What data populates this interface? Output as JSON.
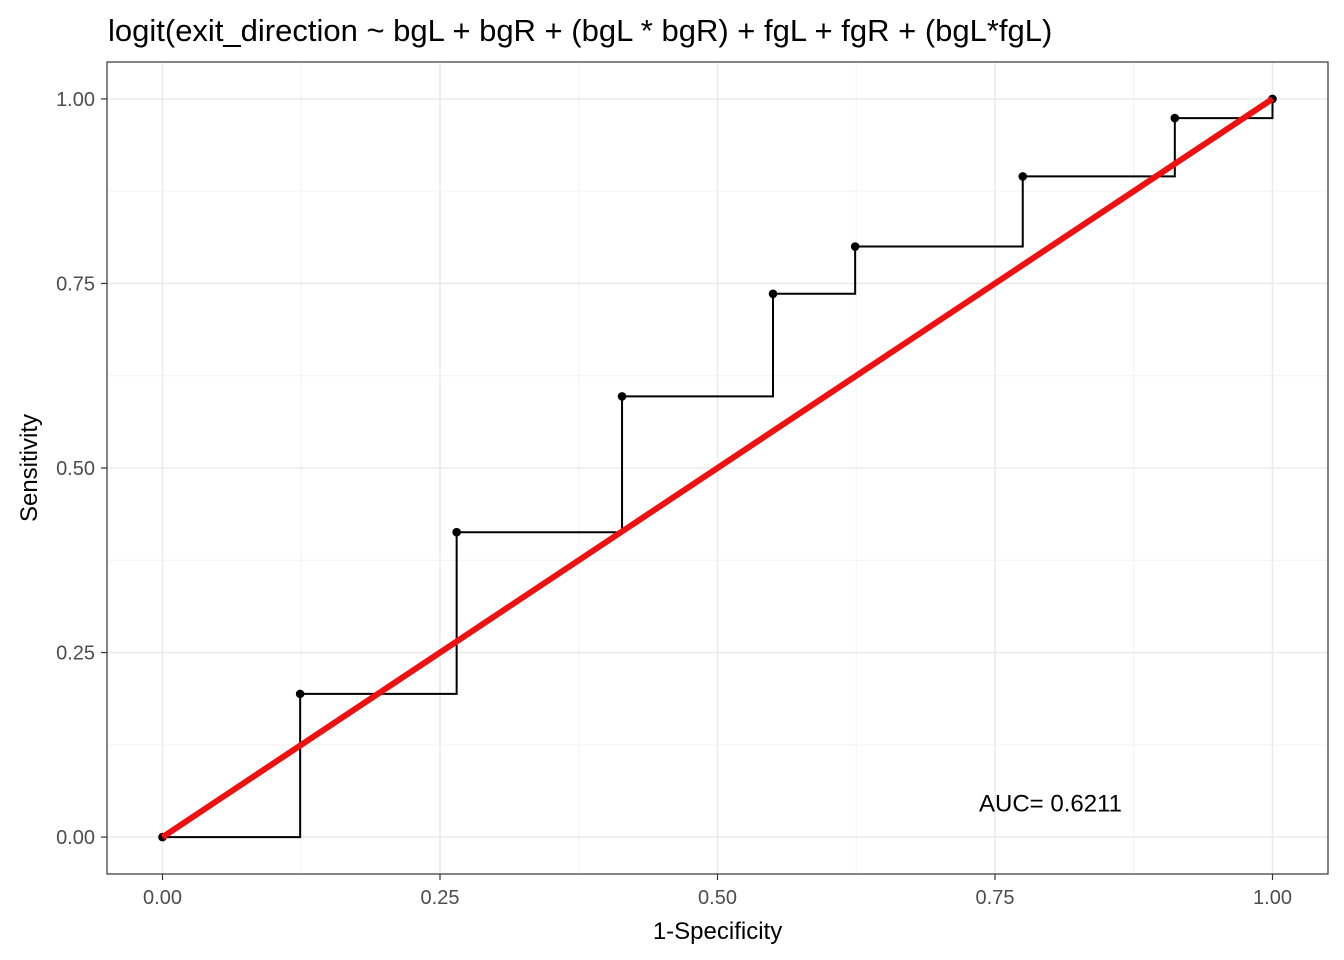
{
  "chart_data": {
    "type": "line",
    "title": "logit(exit_direction ~ bgL + bgR + (bgL * bgR) + fgL + fgR + (bgL*fgL)",
    "xlabel": "1-Specificity",
    "ylabel": "Sensitivity",
    "xlim": [
      -0.05,
      1.05
    ],
    "ylim": [
      -0.05,
      1.05
    ],
    "x_ticks": [
      0,
      0.25,
      0.5,
      0.75,
      1
    ],
    "x_tick_labels": [
      "0.00",
      "0.25",
      "0.50",
      "0.75",
      "1.00"
    ],
    "y_ticks": [
      0,
      0.25,
      0.5,
      0.75,
      1
    ],
    "y_tick_labels": [
      "0.00",
      "0.25",
      "0.50",
      "0.75",
      "1.00"
    ],
    "grid": true,
    "roc_points": {
      "x": [
        0,
        0.124,
        0.265,
        0.414,
        0.55,
        0.624,
        0.775,
        0.912,
        1.0
      ],
      "y": [
        0,
        0.194,
        0.413,
        0.597,
        0.736,
        0.8,
        0.895,
        0.974,
        1.0
      ]
    },
    "roc_steps": {
      "x": [
        0,
        0.124,
        0.124,
        0.265,
        0.265,
        0.414,
        0.414,
        0.55,
        0.55,
        0.624,
        0.624,
        0.775,
        0.775,
        0.912,
        0.912,
        1.0,
        1.0
      ],
      "y": [
        0,
        0,
        0.194,
        0.194,
        0.413,
        0.413,
        0.597,
        0.597,
        0.736,
        0.736,
        0.8,
        0.8,
        0.895,
        0.895,
        0.974,
        0.974,
        1.0
      ]
    },
    "reference_line": {
      "x": [
        0,
        1
      ],
      "y": [
        0,
        1
      ],
      "color": "#ee1111"
    },
    "step_color": "#000000",
    "annotation": {
      "text": "AUC= 0.6211",
      "x": 0.8,
      "y": 0.047
    }
  }
}
